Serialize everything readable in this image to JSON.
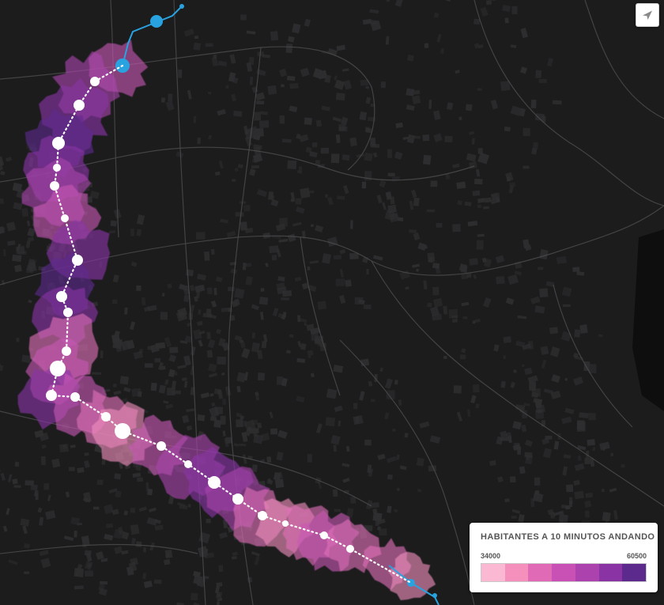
{
  "map": {
    "city_block_color": "#2e2e30",
    "street_color": "#4a4a4c",
    "metro_line_color": "#29a3e0",
    "walk_path_color": "#ffffff",
    "catchment_palette": [
      "#f9b8cf",
      "#f08fbd",
      "#e070b8",
      "#c858b5",
      "#aa44ad",
      "#8a34a6",
      "#5e2a8f"
    ]
  },
  "controls": {
    "locate_icon": "paper-plane-icon"
  },
  "legend": {
    "title": "HABITANTES A 10 MINUTOS ANDANDO",
    "min_label": "34000",
    "max_label": "60500",
    "colors": [
      "#fbb8d2",
      "#f58fbb",
      "#e06ab6",
      "#c950b4",
      "#ac42ad",
      "#8a33a4",
      "#5c2a8d"
    ]
  }
}
